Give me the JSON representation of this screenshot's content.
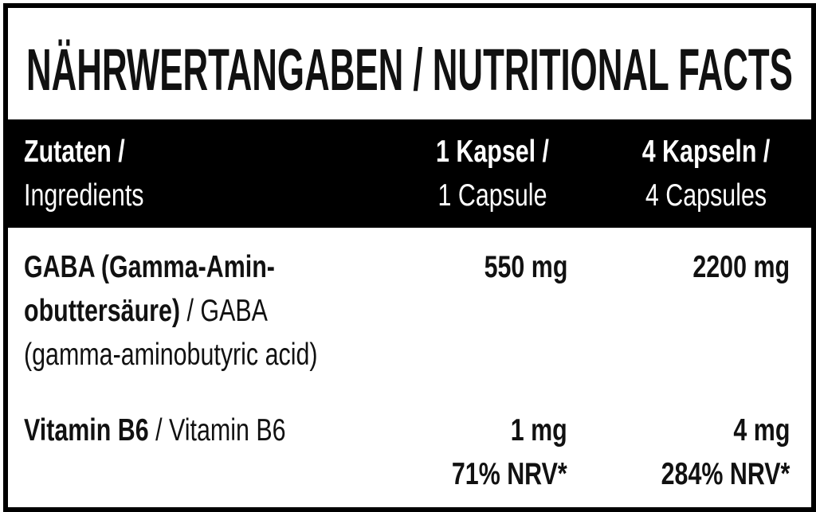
{
  "header": {
    "title": "NÄHRWERTANGABEN / NUTRITIONAL FACTS"
  },
  "table": {
    "columns": [
      {
        "bold": "Zutaten /",
        "regular": "Ingredients"
      },
      {
        "bold": "1 Kapsel /",
        "regular": "1 Capsule"
      },
      {
        "bold": "4 Kapseln /",
        "regular": "4 Capsules"
      }
    ],
    "rows": [
      {
        "ingredient": [
          {
            "bold": "GABA (Gamma-Amin-"
          },
          {
            "bold": "obuttersäure)",
            "regular": "/ GABA"
          },
          {
            "regular": "(gamma-aminobutyric acid)"
          }
        ],
        "per_1": [
          "550 mg"
        ],
        "per_4": [
          "2200 mg"
        ]
      },
      {
        "ingredient": [
          {
            "bold": "Vitamin B6",
            "regular": "/ Vitamin B6"
          }
        ],
        "per_1": [
          "1 mg",
          "71% NRV*"
        ],
        "per_4": [
          "4 mg",
          "284% NRV*"
        ]
      }
    ]
  }
}
